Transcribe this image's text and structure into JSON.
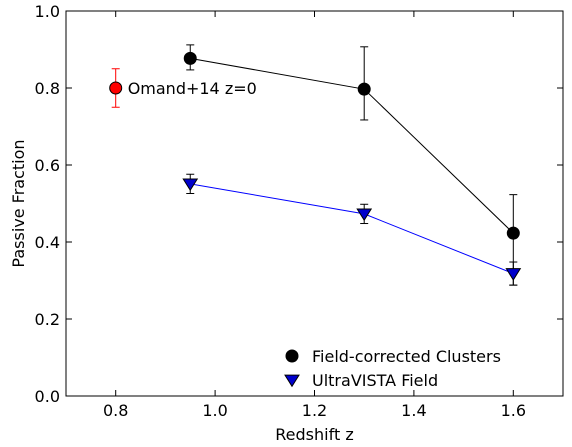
{
  "chart_data": {
    "type": "scatter",
    "xlabel": "Redshift z",
    "ylabel": "Passive Fraction",
    "xlim": [
      0.7,
      1.7
    ],
    "ylim": [
      0.0,
      1.0
    ],
    "xticks": [
      0.8,
      1.0,
      1.2,
      1.4,
      1.6
    ],
    "yticks": [
      0.0,
      0.2,
      0.4,
      0.6,
      0.8,
      1.0
    ],
    "xtick_labels": [
      "0.8",
      "1.0",
      "1.2",
      "1.4",
      "1.6"
    ],
    "ytick_labels": [
      "0.0",
      "0.2",
      "0.4",
      "0.6",
      "0.8",
      "1.0"
    ],
    "grid": false,
    "legend_position": "bottom-right",
    "series": [
      {
        "name": "Field-corrected Clusters",
        "marker": "circle",
        "color": "#000000",
        "line_color": "#000000",
        "x": [
          0.95,
          1.3,
          1.6
        ],
        "y": [
          0.877,
          0.797,
          0.423
        ],
        "yerr_low": [
          0.03,
          0.08,
          0.135
        ],
        "yerr_high": [
          0.035,
          0.11,
          0.1
        ]
      },
      {
        "name": "UltraVISTA Field",
        "marker": "triangle-down",
        "color": "#0000cc",
        "line_color": "#0000ff",
        "x": [
          0.95,
          1.3,
          1.6
        ],
        "y": [
          0.551,
          0.473,
          0.318
        ],
        "yerr_low": [
          0.025,
          0.025,
          0.03
        ],
        "yerr_high": [
          0.025,
          0.025,
          0.03
        ]
      }
    ],
    "annotations": [
      {
        "label": "Omand+14 z=0",
        "x": 0.8,
        "y": 0.8,
        "yerr_low": 0.05,
        "yerr_high": 0.05,
        "marker": "circle",
        "color": "#ff0000",
        "error_color": "#ff0000"
      }
    ]
  }
}
